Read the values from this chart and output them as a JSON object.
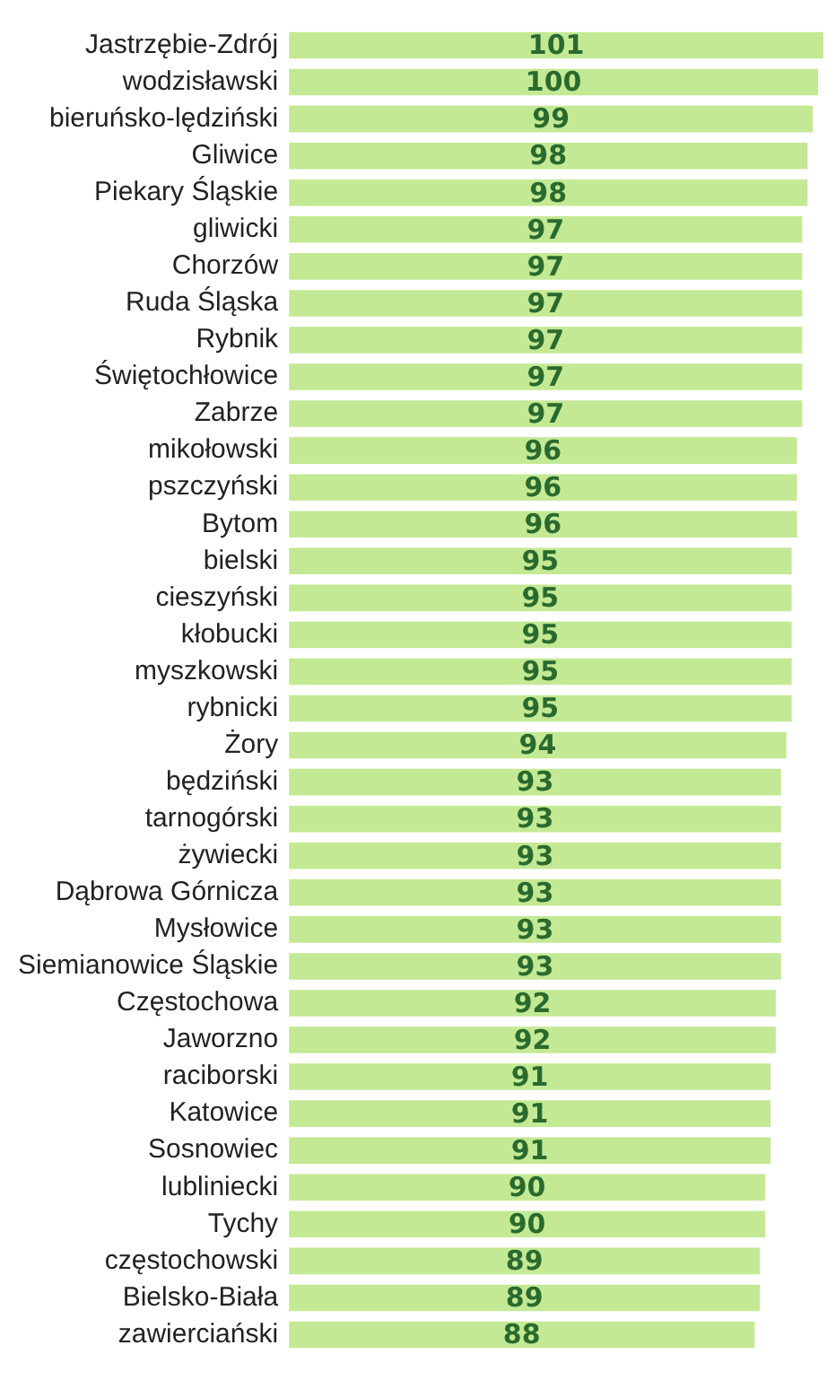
{
  "chart_data": {
    "type": "bar",
    "orientation": "horizontal",
    "data_labels": true,
    "color": "#c3e994",
    "categories": [
      "Jastrzębie-Zdrój",
      "wodzisławski",
      "bieruńsko-lędziński",
      "Gliwice",
      "Piekary Śląskie",
      "gliwicki",
      "Chorzów",
      "Ruda Śląska",
      "Rybnik",
      "Świętochłowice",
      "Zabrze",
      "mikołowski",
      "pszczyński",
      "Bytom",
      "bielski",
      "cieszyński",
      "kłobucki",
      "myszkowski",
      "rybnicki",
      "Żory",
      "będziński",
      "tarnogórski",
      "żywiecki",
      "Dąbrowa Górnicza",
      "Mysłowice",
      "Siemianowice Śląskie",
      "Częstochowa",
      "Jaworzno",
      "raciborski",
      "Katowice",
      "Sosnowiec",
      "lubliniecki",
      "Tychy",
      "częstochowski",
      "Bielsko-Biała",
      "zawierciański"
    ],
    "values": [
      101,
      100,
      99,
      98,
      98,
      97,
      97,
      97,
      97,
      97,
      97,
      96,
      96,
      96,
      95,
      95,
      95,
      95,
      95,
      94,
      93,
      93,
      93,
      93,
      93,
      93,
      92,
      92,
      91,
      91,
      91,
      90,
      90,
      89,
      89,
      88
    ]
  }
}
